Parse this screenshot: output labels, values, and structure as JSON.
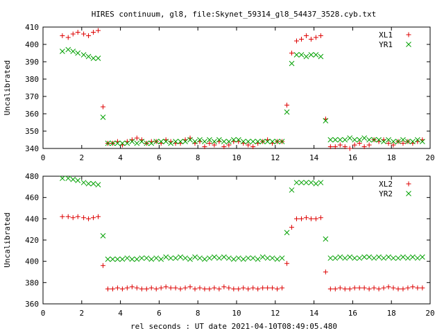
{
  "chart_data": {
    "title": "HIRES continuum, gl8, file:Skynet_59314_gl8_54437_3528.cyb.txt",
    "xlabel": "rel seconds : UT date 2021-04-10T08:49:05.480",
    "panels": [
      {
        "type": "scatter",
        "ylabel": "Uncalibrated",
        "xlim": [
          0,
          20
        ],
        "ylim": [
          340,
          410
        ],
        "xticks": [
          0,
          2,
          4,
          6,
          8,
          10,
          12,
          14,
          16,
          18,
          20
        ],
        "yticks": [
          340,
          350,
          360,
          370,
          380,
          390,
          400,
          410
        ],
        "legend_position": "top-right",
        "series": [
          {
            "name": "XL1",
            "color": "#dd0000",
            "marker": "plus",
            "x": [
              1.0,
              1.3,
              1.55,
              1.8,
              2.1,
              2.35,
              2.6,
              2.85,
              3.1,
              3.35,
              3.6,
              3.85,
              4.1,
              4.35,
              4.6,
              4.85,
              5.1,
              5.35,
              5.6,
              5.85,
              6.1,
              6.35,
              6.6,
              6.85,
              7.1,
              7.35,
              7.6,
              7.85,
              8.1,
              8.35,
              8.6,
              8.85,
              9.1,
              9.35,
              9.6,
              9.85,
              10.1,
              10.35,
              10.6,
              10.85,
              11.1,
              11.35,
              11.6,
              11.85,
              12.1,
              12.35,
              12.6,
              12.85,
              13.1,
              13.35,
              13.6,
              13.85,
              14.1,
              14.35,
              14.6,
              14.85,
              15.1,
              15.35,
              15.6,
              15.85,
              16.1,
              16.35,
              16.6,
              16.85,
              17.1,
              17.35,
              17.6,
              17.85,
              18.1,
              18.35,
              18.6,
              18.85,
              19.1,
              19.35,
              19.6
            ],
            "y": [
              405,
              404,
              406,
              407,
              406,
              405,
              407,
              408,
              364,
              343,
              343,
              344,
              342,
              344,
              345,
              346,
              345,
              343,
              344,
              344,
              343,
              345,
              344,
              343,
              343,
              345,
              346,
              343,
              344,
              341,
              343,
              342,
              344,
              341,
              342,
              344,
              344,
              343,
              342,
              341,
              343,
              344,
              345,
              343,
              344,
              344,
              365,
              395,
              402,
              403,
              405,
              403,
              404,
              405,
              357,
              341,
              341,
              342,
              341,
              340,
              342,
              343,
              341,
              342,
              345,
              344,
              345,
              343,
              342,
              344,
              343,
              344,
              343,
              344,
              345
            ]
          },
          {
            "name": "YR1",
            "color": "#00a000",
            "marker": "x",
            "x": [
              1.0,
              1.3,
              1.55,
              1.8,
              2.1,
              2.35,
              2.6,
              2.85,
              3.1,
              3.35,
              3.6,
              3.85,
              4.1,
              4.35,
              4.6,
              4.85,
              5.1,
              5.35,
              5.6,
              5.85,
              6.1,
              6.35,
              6.6,
              6.85,
              7.1,
              7.35,
              7.6,
              7.85,
              8.1,
              8.35,
              8.6,
              8.85,
              9.1,
              9.35,
              9.6,
              9.85,
              10.1,
              10.35,
              10.6,
              10.85,
              11.1,
              11.35,
              11.6,
              11.85,
              12.1,
              12.35,
              12.6,
              12.85,
              13.1,
              13.35,
              13.6,
              13.85,
              14.1,
              14.35,
              14.6,
              14.85,
              15.1,
              15.35,
              15.6,
              15.85,
              16.1,
              16.35,
              16.6,
              16.85,
              17.1,
              17.35,
              17.6,
              17.85,
              18.1,
              18.35,
              18.6,
              18.85,
              19.1,
              19.35,
              19.6
            ],
            "y": [
              396,
              397,
              396,
              395,
              394,
              393,
              392,
              392,
              358,
              343,
              343,
              343,
              343,
              343,
              344,
              343,
              344,
              343,
              343,
              344,
              344,
              344,
              343,
              344,
              344,
              344,
              345,
              344,
              345,
              344,
              345,
              344,
              345,
              344,
              344,
              345,
              345,
              344,
              344,
              344,
              344,
              344,
              344,
              344,
              344,
              344,
              361,
              389,
              394,
              394,
              393,
              394,
              394,
              393,
              356,
              345,
              345,
              345,
              345,
              346,
              345,
              345,
              346,
              345,
              345,
              345,
              344,
              345,
              344,
              344,
              345,
              344,
              344,
              345,
              344
            ]
          }
        ]
      },
      {
        "type": "scatter",
        "ylabel": "Uncalibrated",
        "xlim": [
          0,
          20
        ],
        "ylim": [
          360,
          480
        ],
        "xticks": [
          0,
          2,
          4,
          6,
          8,
          10,
          12,
          14,
          16,
          18,
          20
        ],
        "yticks": [
          360,
          380,
          400,
          420,
          440,
          460,
          480
        ],
        "legend_position": "top-right",
        "series": [
          {
            "name": "XL2",
            "color": "#dd0000",
            "marker": "plus",
            "x": [
              1.0,
              1.3,
              1.55,
              1.8,
              2.1,
              2.35,
              2.6,
              2.85,
              3.1,
              3.35,
              3.6,
              3.85,
              4.1,
              4.35,
              4.6,
              4.85,
              5.1,
              5.35,
              5.6,
              5.85,
              6.1,
              6.35,
              6.6,
              6.85,
              7.1,
              7.35,
              7.6,
              7.85,
              8.1,
              8.35,
              8.6,
              8.85,
              9.1,
              9.35,
              9.6,
              9.85,
              10.1,
              10.35,
              10.6,
              10.85,
              11.1,
              11.35,
              11.6,
              11.85,
              12.1,
              12.35,
              12.6,
              12.85,
              13.1,
              13.35,
              13.6,
              13.85,
              14.1,
              14.35,
              14.6,
              14.85,
              15.1,
              15.35,
              15.6,
              15.85,
              16.1,
              16.35,
              16.6,
              16.85,
              17.1,
              17.35,
              17.6,
              17.85,
              18.1,
              18.35,
              18.6,
              18.85,
              19.1,
              19.35,
              19.6
            ],
            "y": [
              442,
              442,
              441,
              442,
              441,
              440,
              441,
              442,
              396,
              374,
              374,
              375,
              374,
              375,
              376,
              375,
              374,
              374,
              375,
              374,
              375,
              376,
              375,
              375,
              374,
              375,
              376,
              374,
              375,
              374,
              374,
              375,
              374,
              376,
              375,
              374,
              374,
              375,
              374,
              375,
              374,
              375,
              375,
              375,
              374,
              375,
              398,
              432,
              440,
              440,
              441,
              440,
              440,
              441,
              390,
              374,
              374,
              375,
              374,
              374,
              375,
              375,
              375,
              374,
              375,
              374,
              375,
              376,
              375,
              374,
              374,
              375,
              376,
              375,
              375
            ]
          },
          {
            "name": "YR2",
            "color": "#00a000",
            "marker": "x",
            "x": [
              1.0,
              1.3,
              1.55,
              1.8,
              2.1,
              2.35,
              2.6,
              2.85,
              3.1,
              3.35,
              3.6,
              3.85,
              4.1,
              4.35,
              4.6,
              4.85,
              5.1,
              5.35,
              5.6,
              5.85,
              6.1,
              6.35,
              6.6,
              6.85,
              7.1,
              7.35,
              7.6,
              7.85,
              8.1,
              8.35,
              8.6,
              8.85,
              9.1,
              9.35,
              9.6,
              9.85,
              10.1,
              10.35,
              10.6,
              10.85,
              11.1,
              11.35,
              11.6,
              11.85,
              12.1,
              12.35,
              12.6,
              12.85,
              13.1,
              13.35,
              13.6,
              13.85,
              14.1,
              14.35,
              14.6,
              14.85,
              15.1,
              15.35,
              15.6,
              15.85,
              16.1,
              16.35,
              16.6,
              16.85,
              17.1,
              17.35,
              17.6,
              17.85,
              18.1,
              18.35,
              18.6,
              18.85,
              19.1,
              19.35,
              19.6
            ],
            "y": [
              478,
              478,
              477,
              476,
              474,
              473,
              473,
              472,
              424,
              402,
              402,
              402,
              402,
              403,
              402,
              402,
              403,
              403,
              402,
              403,
              402,
              404,
              403,
              403,
              404,
              403,
              402,
              404,
              403,
              402,
              403,
              404,
              403,
              404,
              403,
              402,
              403,
              402,
              403,
              403,
              402,
              404,
              403,
              403,
              402,
              403,
              427,
              467,
              474,
              474,
              474,
              474,
              473,
              474,
              421,
              403,
              403,
              404,
              403,
              404,
              403,
              403,
              404,
              404,
              403,
              404,
              403,
              404,
              403,
              403,
              404,
              403,
              404,
              403,
              404
            ]
          }
        ]
      }
    ]
  }
}
